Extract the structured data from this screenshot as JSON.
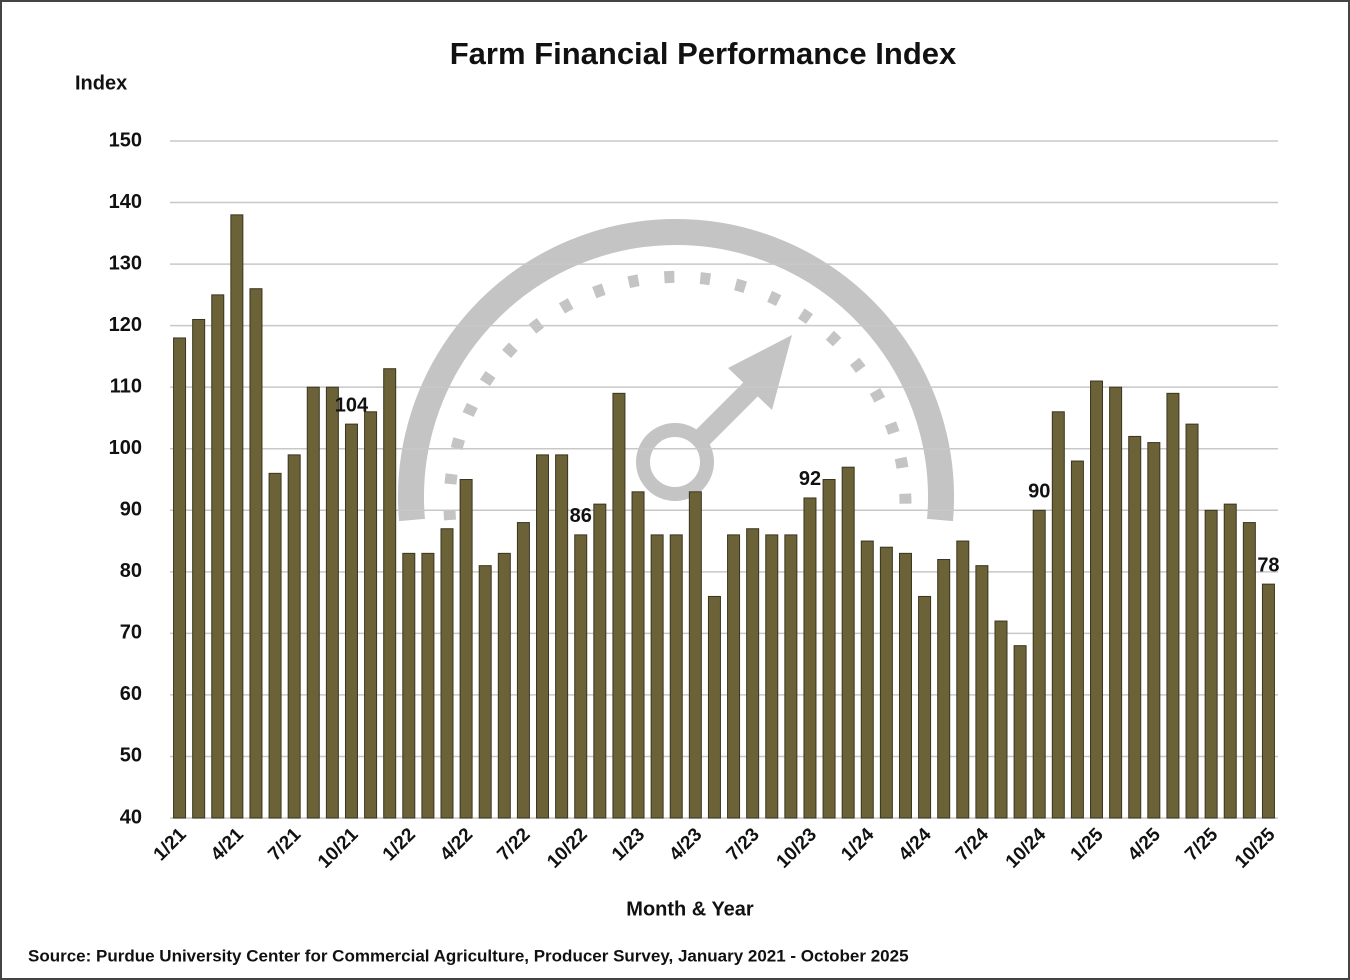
{
  "chart_data": {
    "type": "bar",
    "title": "Farm Financial Performance Index",
    "y_label": "Index",
    "x_label": "Month & Year",
    "source": "Source: Purdue University Center for Commercial Agriculture, Producer Survey, January 2021 - October 2025",
    "categories": [
      "1/21",
      null,
      null,
      "4/21",
      null,
      null,
      "7/21",
      null,
      null,
      "10/21",
      null,
      null,
      "1/22",
      null,
      null,
      "4/22",
      null,
      null,
      "7/22",
      null,
      null,
      "10/22",
      null,
      null,
      "1/23",
      null,
      null,
      "4/23",
      null,
      null,
      "7/23",
      null,
      null,
      "10/23",
      null,
      null,
      "1/24",
      null,
      null,
      "4/24",
      null,
      null,
      "7/24",
      null,
      null,
      "10/24",
      null,
      null,
      "1/25",
      null,
      null,
      "4/25",
      null,
      null,
      "7/25",
      null,
      null,
      "10/25"
    ],
    "values": [
      118,
      121,
      125,
      138,
      126,
      96,
      99,
      110,
      110,
      104,
      106,
      113,
      83,
      83,
      87,
      95,
      81,
      83,
      88,
      99,
      99,
      86,
      91,
      109,
      93,
      86,
      86,
      93,
      76,
      86,
      87,
      86,
      86,
      92,
      95,
      97,
      85,
      84,
      83,
      76,
      82,
      85,
      81,
      72,
      68,
      90,
      106,
      98,
      111,
      110,
      102,
      101,
      109,
      104,
      90,
      91,
      88,
      78
    ],
    "value_labels": [
      null,
      null,
      null,
      null,
      null,
      null,
      null,
      null,
      null,
      "104",
      null,
      null,
      null,
      null,
      null,
      null,
      null,
      null,
      null,
      null,
      null,
      "86",
      null,
      null,
      null,
      null,
      null,
      null,
      null,
      null,
      null,
      null,
      null,
      "92",
      null,
      null,
      null,
      null,
      null,
      null,
      null,
      null,
      null,
      null,
      null,
      "90",
      null,
      null,
      null,
      null,
      null,
      null,
      null,
      null,
      null,
      null,
      null,
      "78"
    ],
    "color": "#6b6238",
    "ylim": [
      40,
      150
    ],
    "yticks": [
      40,
      50,
      60,
      70,
      80,
      90,
      100,
      110,
      120,
      130,
      140,
      150
    ],
    "grid": true
  }
}
